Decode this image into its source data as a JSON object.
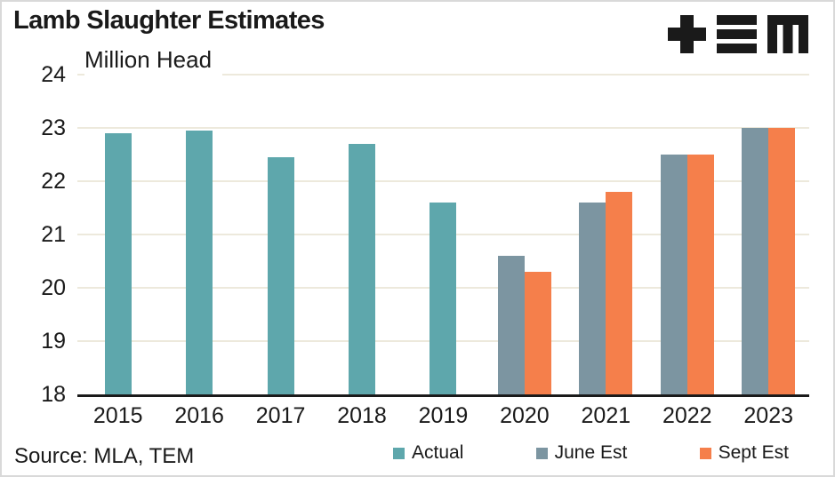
{
  "header": {
    "title": "Lamb Slaughter Estimates",
    "logo": "TEM"
  },
  "chart_data": {
    "type": "bar",
    "title": "Lamb Slaughter Estimates",
    "ylabel": "Million Head",
    "xlabel": "",
    "ylim": [
      18,
      24
    ],
    "ytick_step": 1,
    "grid": "horizontal",
    "gridline_color": "#EDE9DC",
    "axis_color": "#1a1a1a",
    "legend_position": "bottom",
    "categories": [
      "2015",
      "2016",
      "2017",
      "2018",
      "2019",
      "2020",
      "2021",
      "2022",
      "2023"
    ],
    "series": [
      {
        "name": "Actual",
        "color": "#5EA7AC",
        "values": [
          22.9,
          22.95,
          22.45,
          22.7,
          21.6,
          null,
          null,
          null,
          null
        ]
      },
      {
        "name": "June Est",
        "color": "#7C95A1",
        "values": [
          null,
          null,
          null,
          null,
          null,
          20.6,
          21.6,
          22.5,
          23.0
        ]
      },
      {
        "name": "Sept Est",
        "color": "#F57F4B",
        "values": [
          null,
          null,
          null,
          null,
          null,
          20.3,
          21.8,
          22.5,
          23.0
        ]
      }
    ]
  },
  "footer": {
    "source": "Source: MLA, TEM"
  }
}
